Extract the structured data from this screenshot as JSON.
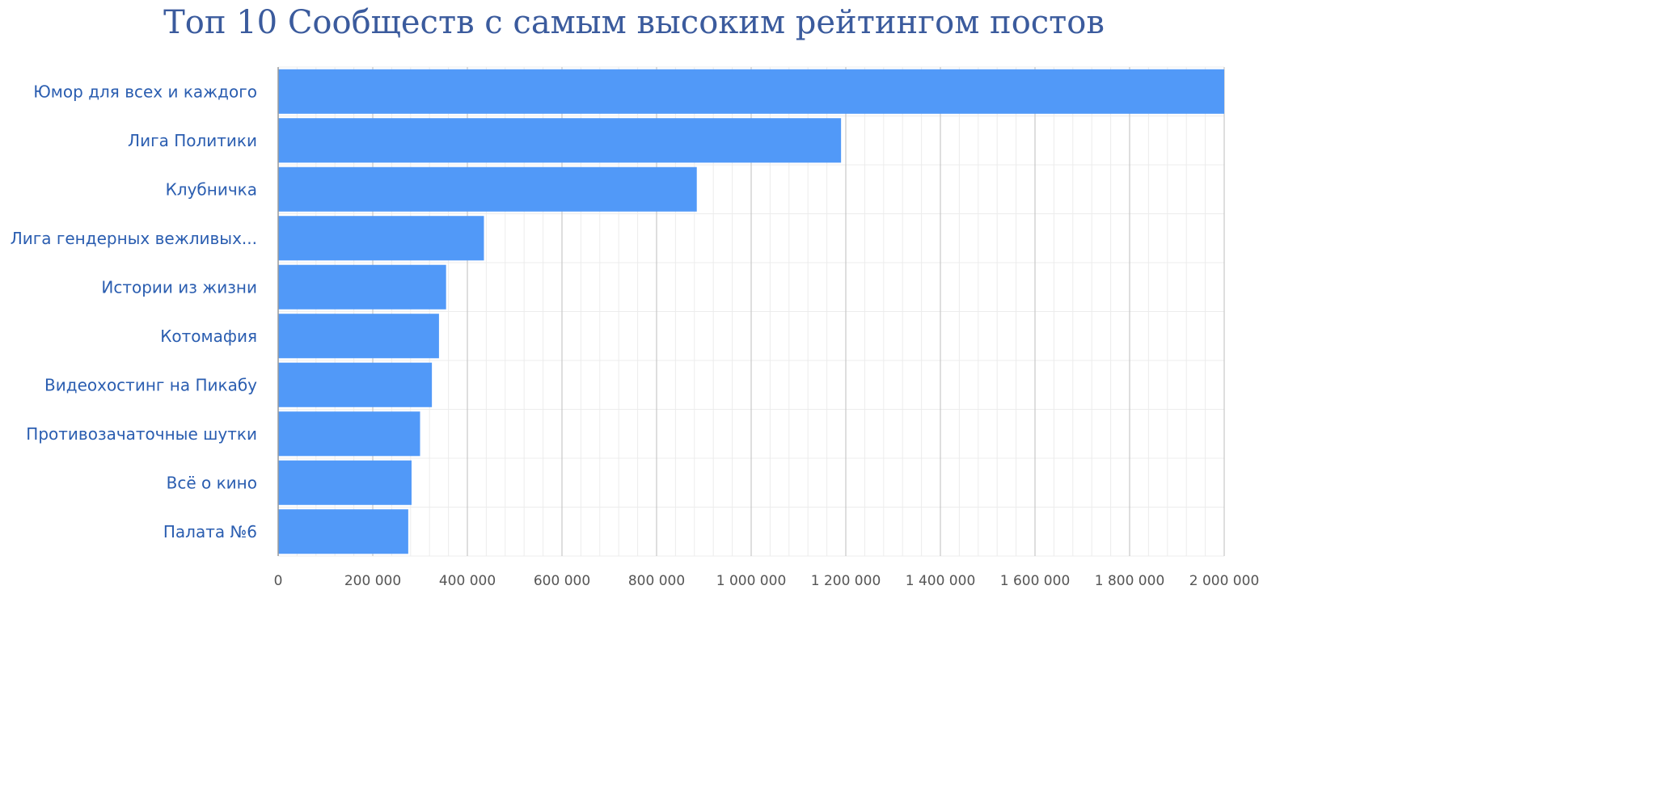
{
  "chart_data": {
    "type": "bar",
    "orientation": "horizontal",
    "title": "Топ 10 Сообществ с самым высоким рейтингом постов",
    "xlabel": "",
    "ylabel": "",
    "categories": [
      "Юмор для всех и каждого",
      "Лига Политики",
      "Клубничка",
      "Лига гендерных вежливых...",
      "Истории из жизни",
      "Котомафия",
      "Видеохостинг на Пикабу",
      "Противозачаточные шутки",
      "Всё о кино",
      "Палата №6"
    ],
    "values": [
      2000000,
      1190000,
      885000,
      435000,
      355000,
      340000,
      325000,
      300000,
      282000,
      275000
    ],
    "xlim": [
      0,
      2000000
    ],
    "ticks": [
      0,
      200000,
      400000,
      600000,
      800000,
      1000000,
      1200000,
      1400000,
      1600000,
      1800000,
      2000000
    ],
    "tick_labels": [
      "0",
      "200 000",
      "400 000",
      "600 000",
      "800 000",
      "1 000 000",
      "1 200 000",
      "1 400 000",
      "1 600 000",
      "1 800 000",
      "2 000 000"
    ],
    "grid": true,
    "legend": "none",
    "colors": {
      "bar": "#5199f8",
      "title": "#3b5b9d",
      "category_label": "#2a5db0",
      "tick_label": "#555555",
      "major_grid": "#c8c8c8",
      "minor_grid": "#ececec",
      "axis": "#9a9a9a"
    }
  }
}
